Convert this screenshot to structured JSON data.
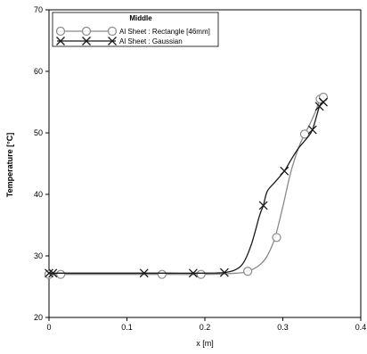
{
  "chart_data": {
    "type": "line",
    "title": "",
    "xlabel": "x [m]",
    "ylabel": "Temperature [°C]",
    "xlim": [
      0,
      0.4
    ],
    "ylim": [
      20,
      70
    ],
    "xticks": [
      0,
      0.1,
      0.2,
      0.3,
      0.4
    ],
    "xtick_labels": [
      "0",
      "0.1",
      "0.2",
      "0.3",
      "0.4"
    ],
    "yticks": [
      20,
      30,
      40,
      50,
      60,
      70
    ],
    "ytick_labels": [
      "20",
      "30",
      "40",
      "50",
      "60",
      "70"
    ],
    "grid": false,
    "legend": {
      "title": "Middle",
      "placement": "top-left"
    },
    "series": [
      {
        "name": "Al Sheet : Rectangle [46mm]",
        "color": "#8a8a8a",
        "marker": "circle",
        "x": [
          0.0,
          0.015,
          0.145,
          0.195,
          0.255,
          0.292,
          0.328,
          0.348,
          0.352
        ],
        "y": [
          27.0,
          27.0,
          27.0,
          27.0,
          27.5,
          33.0,
          49.8,
          55.5,
          55.8
        ],
        "line_x": [
          0.0,
          0.05,
          0.1,
          0.15,
          0.2,
          0.24,
          0.255,
          0.27,
          0.28,
          0.29,
          0.3,
          0.31,
          0.32,
          0.328,
          0.335,
          0.342,
          0.348,
          0.352
        ],
        "line_y": [
          27.0,
          27.0,
          27.0,
          27.0,
          27.0,
          27.2,
          27.5,
          28.5,
          30.0,
          33.0,
          38.0,
          43.5,
          47.5,
          49.8,
          51.5,
          53.5,
          55.5,
          55.8
        ]
      },
      {
        "name": "Al Sheet : Gaussian",
        "color": "#1a1a1a",
        "marker": "x",
        "x": [
          0.0,
          0.005,
          0.122,
          0.185,
          0.225,
          0.275,
          0.302,
          0.338,
          0.347,
          0.352
        ],
        "y": [
          27.2,
          27.2,
          27.2,
          27.2,
          27.3,
          38.2,
          43.8,
          50.5,
          54.3,
          55.0
        ],
        "line_x": [
          0.0,
          0.05,
          0.1,
          0.15,
          0.2,
          0.225,
          0.24,
          0.25,
          0.26,
          0.27,
          0.275,
          0.28,
          0.29,
          0.302,
          0.31,
          0.32,
          0.33,
          0.338,
          0.347,
          0.352
        ],
        "line_y": [
          27.2,
          27.2,
          27.2,
          27.2,
          27.2,
          27.3,
          27.8,
          29.0,
          32.0,
          36.5,
          38.2,
          40.5,
          42.0,
          43.8,
          45.5,
          47.5,
          49.0,
          50.5,
          54.3,
          55.0
        ]
      }
    ]
  }
}
